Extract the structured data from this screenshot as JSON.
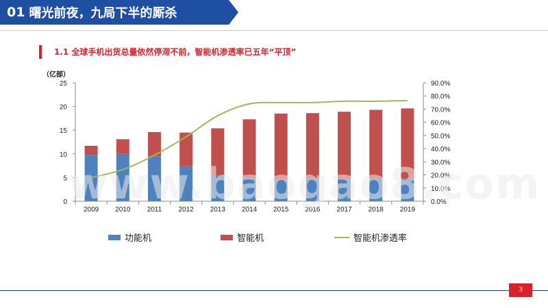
{
  "header": {
    "number": "01",
    "title": "曙光前夜，九局下半的厮杀"
  },
  "section_title": "1.1 全球手机出货总量依然停滞不前，智能机渗透率已五年“平顶”",
  "page_number": "3",
  "watermark": "www.baogao8.com",
  "colors": {
    "header": "#1f4fa3",
    "accent": "#d9232a",
    "feature": "#4f81bd",
    "smart": "#c0504d",
    "line": "#9bbb59"
  },
  "chart_data": {
    "type": "bar",
    "stacked": true,
    "categories": [
      "2009",
      "2010",
      "2011",
      "2012",
      "2013",
      "2014",
      "2015",
      "2016",
      "2017",
      "2018",
      "2019"
    ],
    "series": [
      {
        "name": "功能机",
        "type": "bar",
        "axis": "left",
        "color": "#4f81bd",
        "values": [
          9.8,
          10.0,
          9.5,
          7.4,
          5.4,
          4.9,
          4.5,
          4.8,
          4.6,
          4.7,
          4.8
        ]
      },
      {
        "name": "智能机",
        "type": "bar",
        "axis": "left",
        "color": "#c0504d",
        "values": [
          1.9,
          3.1,
          5.1,
          7.1,
          10.0,
          12.4,
          14.0,
          13.8,
          14.3,
          14.6,
          14.8
        ]
      },
      {
        "name": "智能机渗透率",
        "type": "line",
        "axis": "right",
        "color": "#9bbb59",
        "values": [
          0.18,
          0.24,
          0.35,
          0.49,
          0.65,
          0.74,
          0.75,
          0.75,
          0.76,
          0.76,
          0.765
        ]
      }
    ],
    "y_left": {
      "unit_label": "（亿部）",
      "ylim": [
        0,
        25
      ],
      "ticks": [
        "0",
        "5",
        "10",
        "15",
        "20",
        "25"
      ]
    },
    "y_right": {
      "ylim": [
        0,
        0.9
      ],
      "ticks": [
        "0.0%",
        "10.0%",
        "20.0%",
        "30.0%",
        "40.0%",
        "50.0%",
        "60.0%",
        "70.0%",
        "80.0%",
        "90.0%"
      ]
    },
    "grid": false,
    "legend_position": "bottom"
  }
}
